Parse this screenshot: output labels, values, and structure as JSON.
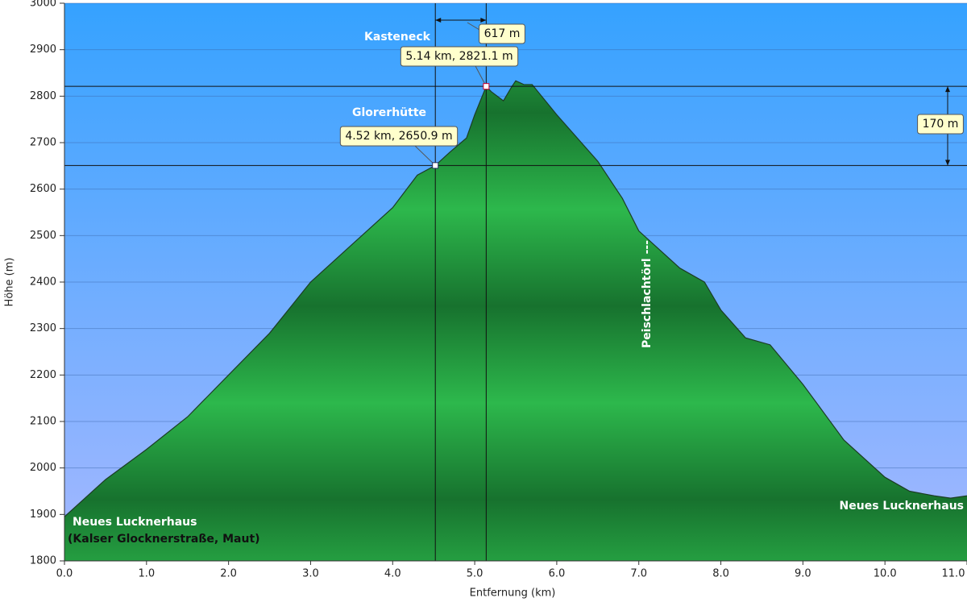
{
  "chart_data": {
    "type": "area",
    "xlabel": "Entfernung (km)",
    "ylabel": "Höhe (m)",
    "x": [
      0,
      0.5,
      1,
      1.5,
      2,
      2.5,
      3,
      3.5,
      4,
      4.3,
      4.52,
      4.7,
      4.9,
      5,
      5.14,
      5.2,
      5.35,
      5.45,
      5.5,
      5.6,
      5.7,
      6,
      6.5,
      6.8,
      7,
      7.5,
      7.8,
      8,
      8.3,
      8.6,
      9,
      9.5,
      10,
      10.3,
      10.6,
      10.8,
      11
    ],
    "values": [
      1895,
      1975,
      2040,
      2110,
      2200,
      2290,
      2400,
      2480,
      2560,
      2630,
      2650.9,
      2680,
      2710,
      2760,
      2821.1,
      2810,
      2790,
      2820,
      2833,
      2825,
      2825,
      2760,
      2660,
      2580,
      2510,
      2430,
      2400,
      2340,
      2280,
      2265,
      2180,
      2060,
      1980,
      1950,
      1940,
      1935,
      1940
    ],
    "color": "#22a845",
    "line_color": "#1c3d25",
    "xlim": [
      0,
      11
    ],
    "ylim": [
      1800,
      3000
    ],
    "xticks": [
      {
        "value": 0,
        "label": "0.0"
      },
      {
        "value": 1,
        "label": "1.0"
      },
      {
        "value": 2,
        "label": "2.0"
      },
      {
        "value": 3,
        "label": "3.0"
      },
      {
        "value": 4,
        "label": "4.0"
      },
      {
        "value": 5,
        "label": "5.0"
      },
      {
        "value": 6,
        "label": "6.0"
      },
      {
        "value": 7,
        "label": "7.0"
      },
      {
        "value": 8,
        "label": "8.0"
      },
      {
        "value": 9,
        "label": "9.0"
      },
      {
        "value": 10,
        "label": "10.0"
      },
      {
        "value": 11,
        "label": "11.0"
      }
    ],
    "yticks": [
      1800,
      1900,
      2000,
      2100,
      2200,
      2300,
      2400,
      2500,
      2600,
      2700,
      2800,
      2900,
      3000
    ],
    "grid": true,
    "markers": [
      {
        "name": "Glorerhütte",
        "x": 4.52,
        "y": 2650.9,
        "label": "4.52 km, 2650.9 m"
      },
      {
        "name": "Kasteneck",
        "x": 5.14,
        "y": 2821.1,
        "label": "5.14 km, 2821.1 m"
      }
    ],
    "measures": [
      {
        "value": 617,
        "label": "617 m"
      },
      {
        "value": 170,
        "label": "170 m"
      }
    ],
    "places": [
      "Neues Lucknerhaus",
      "(Kalser Glocknerstraße, Maut)",
      "Peischlachtörl ---",
      "Neues Lucknerhaus"
    ]
  }
}
